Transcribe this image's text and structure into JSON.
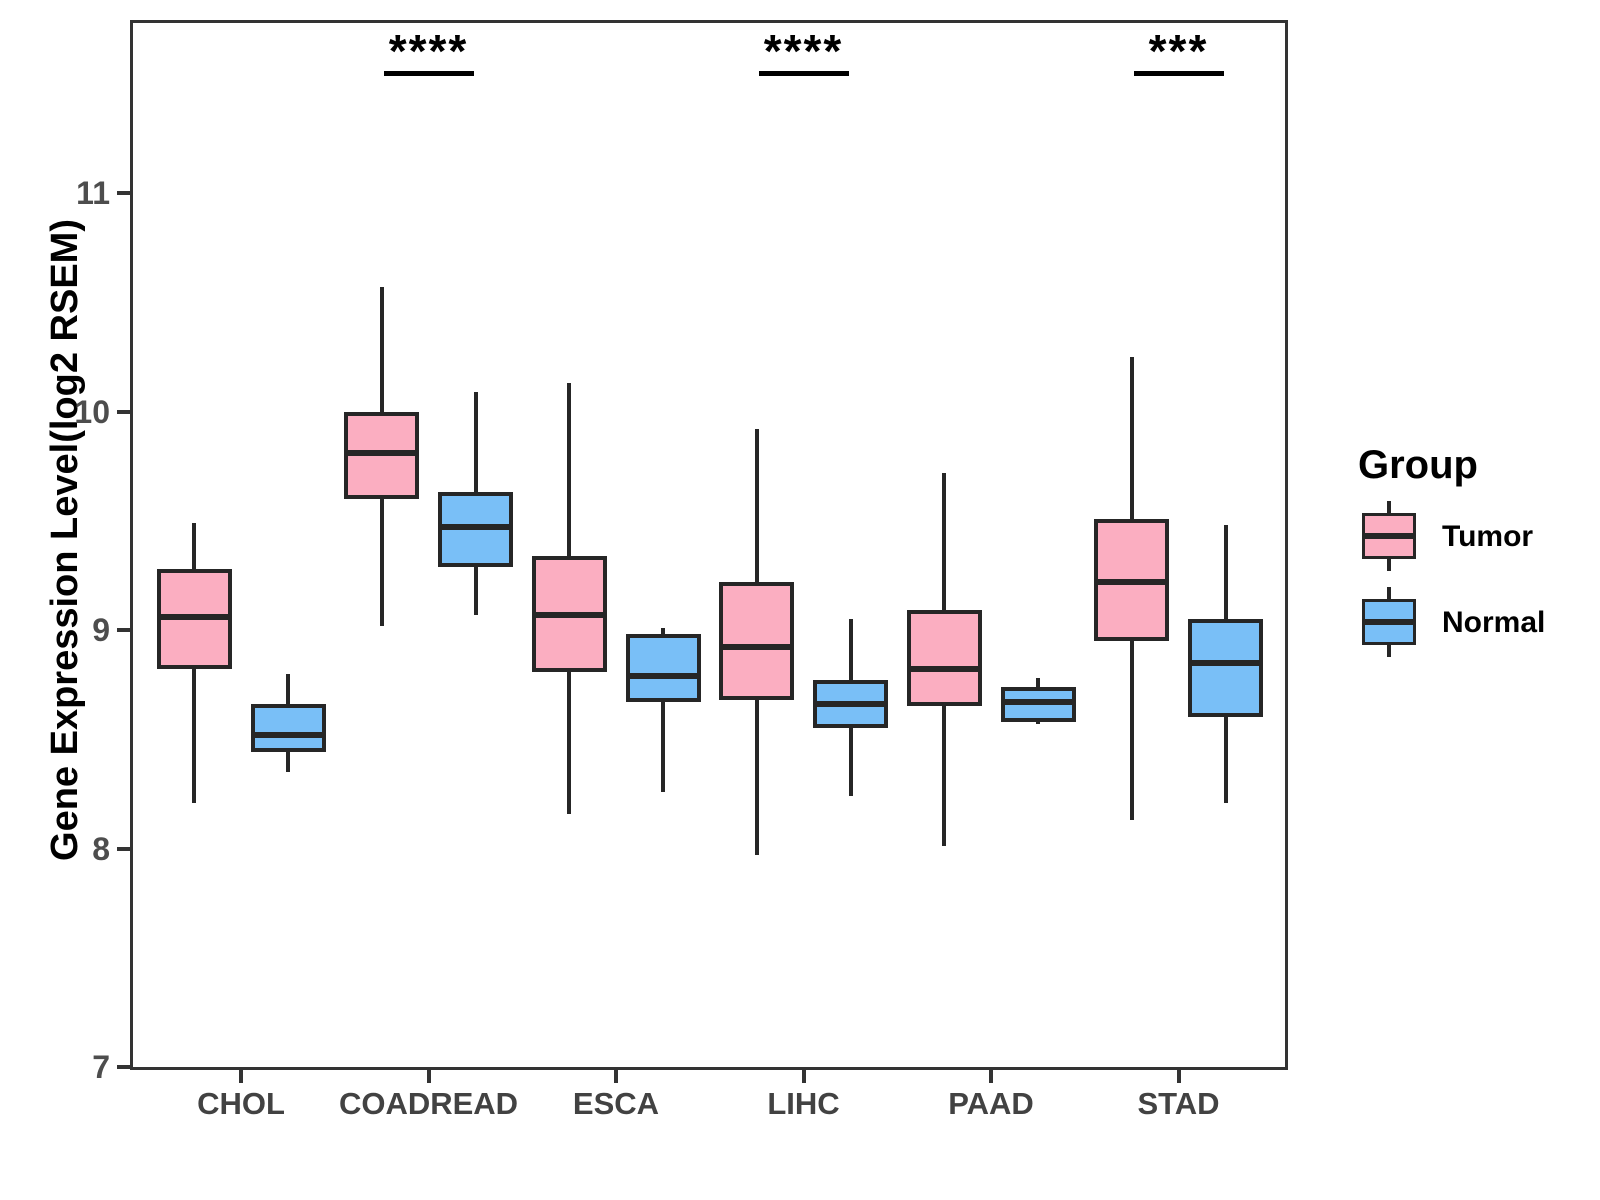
{
  "chart_data": {
    "type": "boxplot",
    "title": "",
    "ylabel": "Gene Expression Level(log2 RSEM)",
    "xlabel": "",
    "ylim": [
      6.98,
      11.79
    ],
    "yticks": [
      7,
      8,
      9,
      10,
      11
    ],
    "grid": false,
    "legend_position": "right",
    "groups": [
      "Tumor",
      "Normal"
    ],
    "categories": [
      "CHOL",
      "COADREAD",
      "ESCA",
      "LIHC",
      "PAAD",
      "STAD"
    ],
    "series": [
      {
        "category": "CHOL",
        "significance": "",
        "tumor": {
          "whisker_low": 8.21,
          "q1": 8.82,
          "median": 9.06,
          "q3": 9.28,
          "whisker_high": 9.49
        },
        "normal": {
          "whisker_low": 8.35,
          "q1": 8.44,
          "median": 8.52,
          "q3": 8.66,
          "whisker_high": 8.8
        }
      },
      {
        "category": "COADREAD",
        "significance": "****",
        "tumor": {
          "whisker_low": 9.02,
          "q1": 9.6,
          "median": 9.81,
          "q3": 10.0,
          "whisker_high": 10.57
        },
        "normal": {
          "whisker_low": 9.07,
          "q1": 9.29,
          "median": 9.47,
          "q3": 9.63,
          "whisker_high": 10.09
        }
      },
      {
        "category": "ESCA",
        "significance": "",
        "tumor": {
          "whisker_low": 8.16,
          "q1": 8.81,
          "median": 9.07,
          "q3": 9.34,
          "whisker_high": 10.13
        },
        "normal": {
          "whisker_low": 8.26,
          "q1": 8.67,
          "median": 8.79,
          "q3": 8.98,
          "whisker_high": 9.01
        }
      },
      {
        "category": "LIHC",
        "significance": "****",
        "tumor": {
          "whisker_low": 7.97,
          "q1": 8.68,
          "median": 8.92,
          "q3": 9.22,
          "whisker_high": 9.92
        },
        "normal": {
          "whisker_low": 8.24,
          "q1": 8.55,
          "median": 8.66,
          "q3": 8.77,
          "whisker_high": 9.05
        }
      },
      {
        "category": "PAAD",
        "significance": "",
        "tumor": {
          "whisker_low": 8.01,
          "q1": 8.65,
          "median": 8.82,
          "q3": 9.09,
          "whisker_high": 9.72
        },
        "normal": {
          "whisker_low": 8.57,
          "q1": 8.58,
          "median": 8.67,
          "q3": 8.74,
          "whisker_high": 8.78
        }
      },
      {
        "category": "STAD",
        "significance": "***",
        "tumor": {
          "whisker_low": 8.13,
          "q1": 8.95,
          "median": 9.22,
          "q3": 9.51,
          "whisker_high": 10.25
        },
        "normal": {
          "whisker_low": 8.21,
          "q1": 8.6,
          "median": 8.85,
          "q3": 9.05,
          "whisker_high": 9.48
        }
      }
    ],
    "colors": {
      "tumor_fill": "#FBAEC1",
      "normal_fill": "#79BFF7",
      "stroke": "#262626",
      "significance": "#000000"
    }
  },
  "legend": {
    "title": "Group",
    "items": [
      {
        "label": "Tumor",
        "color": "#FBAEC1"
      },
      {
        "label": "Normal",
        "color": "#79BFF7"
      }
    ]
  }
}
